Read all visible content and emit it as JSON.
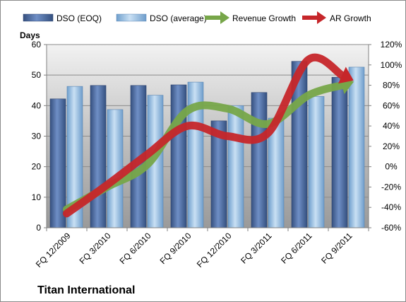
{
  "chart_data": {
    "type": "bar",
    "title": "",
    "company": "Titan International",
    "ylabel_left": "Days",
    "categories": [
      "FQ 12/2009",
      "FQ 3/2010",
      "FQ 6/2010",
      "FQ 9/2010",
      "FQ 12/2010",
      "FQ 3/2011",
      "FQ 6/2011",
      "FQ 9/2011"
    ],
    "series": [
      {
        "name": "DSO (EOQ)",
        "kind": "bar",
        "axis": "left",
        "color": "#4f6fa8",
        "values": [
          42.2,
          46.6,
          46.6,
          46.8,
          35.0,
          44.3,
          54.5,
          49.3
        ]
      },
      {
        "name": "DSO (average)",
        "kind": "bar",
        "axis": "left",
        "color": "#9ec3e6",
        "values": [
          46.3,
          38.7,
          43.4,
          47.7,
          40.0,
          35.9,
          43.0,
          52.6
        ]
      },
      {
        "name": "Revenue Growth",
        "kind": "line",
        "axis": "right",
        "color": "#77a649",
        "values": [
          -42,
          -20,
          2,
          55,
          57,
          42,
          70,
          82
        ]
      },
      {
        "name": "AR Growth",
        "kind": "line",
        "axis": "right",
        "color": "#c6262a",
        "values": [
          -46,
          -18,
          12,
          40,
          30,
          33,
          105,
          87
        ]
      }
    ],
    "ylim_left": [
      0,
      60
    ],
    "yticks_left": [
      "0",
      "10",
      "20",
      "30",
      "40",
      "50",
      "60"
    ],
    "ylim_right": [
      -60,
      120
    ],
    "yticks_right": [
      "-60%",
      "-40%",
      "-20%",
      "0%",
      "20%",
      "40%",
      "60%",
      "80%",
      "100%",
      "120%"
    ],
    "grid": true,
    "legend_position": "top"
  }
}
